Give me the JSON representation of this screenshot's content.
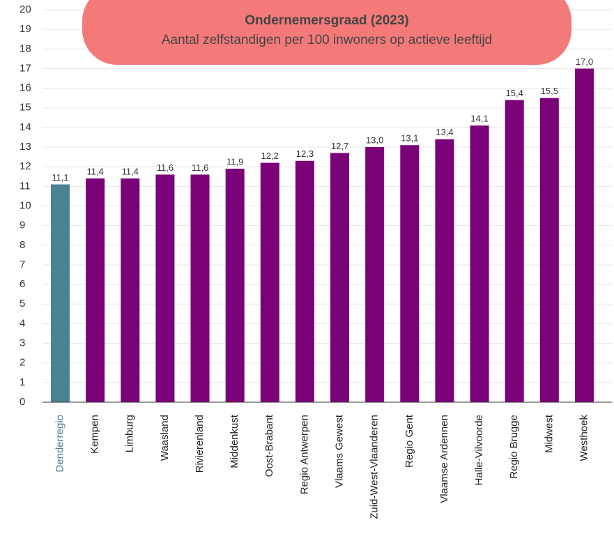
{
  "chart_data": {
    "type": "bar",
    "title": "Ondernemersgraad (2023)",
    "subtitle": "Aantal zelfstandigen per 100 inwoners op actieve leeftijd",
    "categories": [
      "Denderregio",
      "Kempen",
      "Limburg",
      "Waasland",
      "Rivierenland",
      "Middenkust",
      "Oost-Brabant",
      "Regio Antwerpen",
      "Vlaams Gewest",
      "Zuid-West-Vlaanderen",
      "Regio Gent",
      "Vlaamse Ardennen",
      "Halle-Vilvoorde",
      "Regio Brugge",
      "Midwest",
      "Westhoek"
    ],
    "values": [
      11.1,
      11.4,
      11.4,
      11.6,
      11.6,
      11.9,
      12.2,
      12.3,
      12.7,
      13.0,
      13.1,
      13.4,
      14.1,
      15.4,
      15.5,
      17.0
    ],
    "value_labels": [
      "11,1",
      "11,4",
      "11,4",
      "11,6",
      "11,6",
      "11,9",
      "12,2",
      "12,3",
      "12,7",
      "13,0",
      "13,1",
      "13,4",
      "14,1",
      "15,4",
      "15,5",
      "17,0"
    ],
    "color": "#7a0177",
    "colors": [
      "#4a8290",
      "#7a0177",
      "#7a0177",
      "#7a0177",
      "#7a0177",
      "#7a0177",
      "#7a0177",
      "#7a0177",
      "#7a0177",
      "#7a0177",
      "#7a0177",
      "#7a0177",
      "#7a0177",
      "#7a0177",
      "#7a0177",
      "#7a0177"
    ],
    "ylim": [
      0,
      20
    ],
    "yticks": [
      0,
      1,
      2,
      3,
      4,
      5,
      6,
      7,
      8,
      9,
      10,
      11,
      12,
      13,
      14,
      15,
      16,
      17,
      18,
      19,
      20
    ],
    "grid": true
  }
}
